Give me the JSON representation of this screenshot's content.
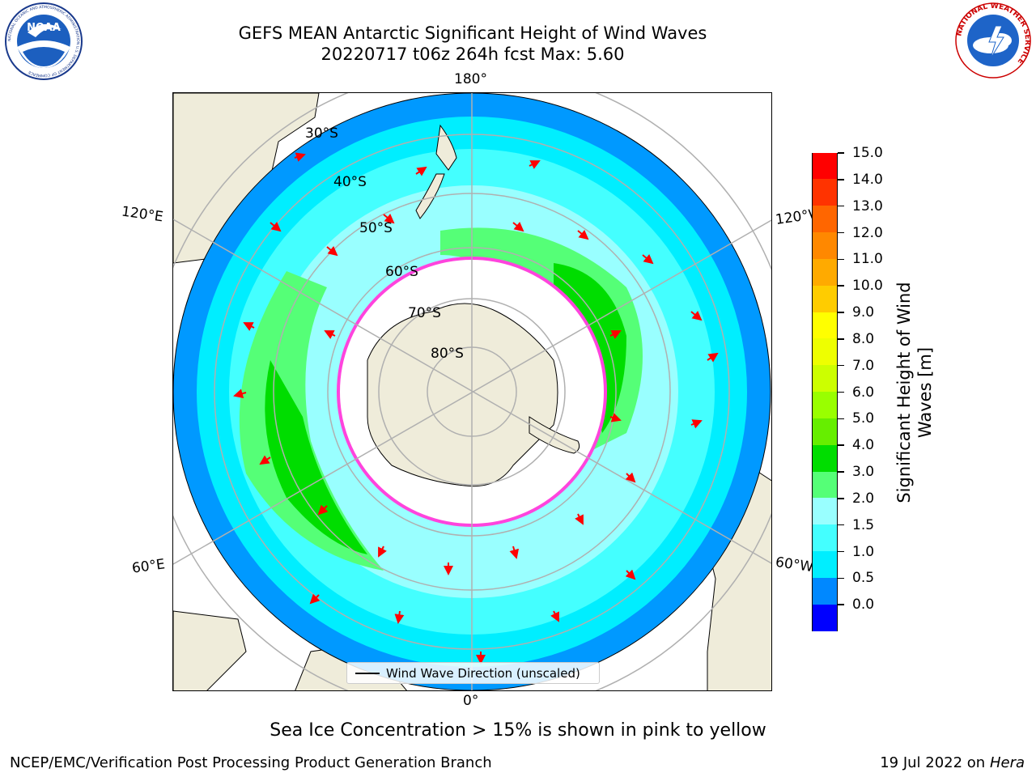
{
  "header": {
    "title_line1": "GEFS MEAN Antarctic Significant Height of Wind Waves",
    "title_line2": "20220717 t06z 264h fcst   Max: 5.60"
  },
  "logos": {
    "noara_text": "NOAA",
    "noara_ring_text": "NATIONAL OCEANIC AND ATMOSPHERIC ADMINISTRATION  U.S. DEPARTMENT OF COMMERCE",
    "nws_ring_text": "NATIONAL WEATHER SERVICE"
  },
  "map": {
    "longitude_labels": {
      "top": "180°",
      "bottom": "0°",
      "upper_left": "120°E",
      "lower_left": "60°E",
      "upper_right": "120°W",
      "lower_right": "60°W"
    },
    "latitude_labels": [
      "30°S",
      "40°S",
      "50°S",
      "60°S",
      "70°S",
      "80°S"
    ],
    "legend_label": "Wind Wave Direction (unscaled)",
    "colors": {
      "land": "#efecda",
      "sea_ice": "#ffffff",
      "arrow": "#ff0000",
      "grid": "#b0b0b0"
    }
  },
  "colorbar": {
    "title_line1": "Significant Height of Wind",
    "title_line2": "Waves [m]",
    "tick_labels": [
      "15.0",
      "14.0",
      "13.0",
      "12.0",
      "11.0",
      "10.0",
      "9.0",
      "8.0",
      "7.0",
      "6.0",
      "5.0",
      "4.0",
      "3.0",
      "2.0",
      "1.5",
      "1.0",
      "0.5",
      "0.0"
    ],
    "colors_top_to_bottom": [
      "#ff0000",
      "#ff3300",
      "#ff6600",
      "#ff8800",
      "#ffaa00",
      "#ffcc00",
      "#ffff00",
      "#eeff00",
      "#ccff00",
      "#99ff00",
      "#66ee00",
      "#00dd00",
      "#55ff77",
      "#99ffff",
      "#44ffff",
      "#00eeff",
      "#0088ff",
      "#0000ff"
    ]
  },
  "sea_ice_note": "Sea Ice Concentration > 15% is shown in pink to yellow",
  "footer": {
    "left": "NCEP/EMC/Verification Post Processing Product Generation Branch",
    "right_prefix": "19 Jul 2022 on ",
    "right_italic": "Hera"
  }
}
